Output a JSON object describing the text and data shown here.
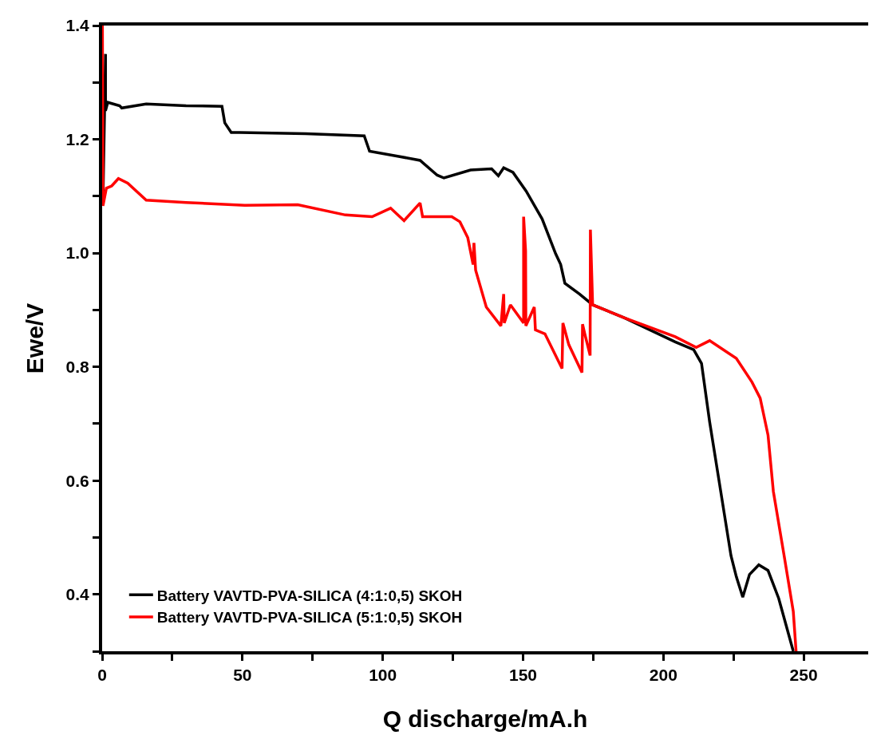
{
  "chart_data": {
    "type": "line",
    "xlabel": "Q discharge/mA.h",
    "ylabel": "Ewe/V",
    "xlim": [
      0,
      273
    ],
    "ylim": [
      0.3,
      1.4
    ],
    "xticks": [
      0,
      {
        "value": 25,
        "label": null
      },
      50,
      {
        "value": 75,
        "label": null
      },
      100,
      {
        "value": 125,
        "label": null
      },
      150,
      {
        "value": 175,
        "label": null
      },
      200,
      {
        "value": 225,
        "label": null
      },
      250
    ],
    "yticks": [
      {
        "value": 0.3,
        "label": null
      },
      0.4,
      {
        "value": 0.5,
        "label": null
      },
      0.6,
      {
        "value": 0.7,
        "label": null
      },
      0.8,
      {
        "value": 0.9,
        "label": null
      },
      {
        "value": 1.0,
        "label": "1.0"
      },
      {
        "value": 1.1,
        "label": null
      },
      1.2,
      {
        "value": 1.3,
        "label": null
      },
      1.4
    ],
    "grid": false,
    "legend": "bottom left",
    "marker": "none",
    "line_style": "solid",
    "series": [
      {
        "name": "Battery VAVTD-PVA-SILICA (4:1:0,5) SKOH",
        "color": "#000000",
        "x": [
          0.3,
          1.2,
          1.2,
          2.0,
          6.25,
          7,
          15.7,
          29.9,
          42.7,
          43.7,
          46,
          48.9,
          72.5,
          93.4,
          95.3,
          105.7,
          113.3,
          119.4,
          121.8,
          131.3,
          138.8,
          141.2,
          143.1,
          146.4,
          151.1,
          156.8,
          161.6,
          163.4,
          164.9,
          170.1,
          174.8,
          186.2,
          204.2,
          210.8,
          213.6,
          216.5,
          224.1,
          226,
          228.3,
          230.7,
          234,
          237.3,
          241.1,
          246.3
        ],
        "values": [
          1.09,
          1.35,
          1.25,
          1.265,
          1.259,
          1.255,
          1.262,
          1.259,
          1.258,
          1.229,
          1.212,
          1.212,
          1.21,
          1.206,
          1.179,
          1.17,
          1.163,
          1.137,
          1.132,
          1.146,
          1.148,
          1.136,
          1.15,
          1.142,
          1.109,
          1.06,
          0.999,
          0.98,
          0.947,
          0.928,
          0.909,
          0.886,
          0.844,
          0.83,
          0.806,
          0.703,
          0.468,
          0.431,
          0.395,
          0.435,
          0.452,
          0.442,
          0.393,
          0.3
        ]
      },
      {
        "name": "Battery VAVTD-PVA-SILICA (5:1:0,5) SKOH",
        "color": "#ff0000",
        "x": [
          0.1,
          0.3,
          1.5,
          3.4,
          5.8,
          9.1,
          15.7,
          29.9,
          50.8,
          69.7,
          86.7,
          96.2,
          102.8,
          107.6,
          113.3,
          114.2,
          124.6,
          127.5,
          130.3,
          132.2,
          132.5,
          133.1,
          136.9,
          142.1,
          143.1,
          143.3,
          145.5,
          150.2,
          150.2,
          150.9,
          151.0,
          154,
          154.4,
          157.8,
          163.9,
          164.2,
          166.3,
          171,
          171.2,
          172,
          173.9,
          174,
          174.8,
          186.2,
          204.2,
          211.7,
          216.5,
          226,
          231.6,
          234.5,
          237.3,
          239.2,
          243,
          246.3,
          247.3
        ],
        "values": [
          1.4,
          1.083,
          1.114,
          1.118,
          1.131,
          1.123,
          1.093,
          1.089,
          1.084,
          1.085,
          1.067,
          1.064,
          1.079,
          1.057,
          1.088,
          1.064,
          1.064,
          1.055,
          1.027,
          0.98,
          1.018,
          0.97,
          0.905,
          0.872,
          0.928,
          0.877,
          0.909,
          0.877,
          1.064,
          1.004,
          0.872,
          0.905,
          0.865,
          0.858,
          0.797,
          0.877,
          0.839,
          0.79,
          0.875,
          0.858,
          0.82,
          1.041,
          0.909,
          0.886,
          0.853,
          0.834,
          0.846,
          0.815,
          0.773,
          0.745,
          0.68,
          0.581,
          0.469,
          0.37,
          0.3
        ]
      }
    ]
  }
}
